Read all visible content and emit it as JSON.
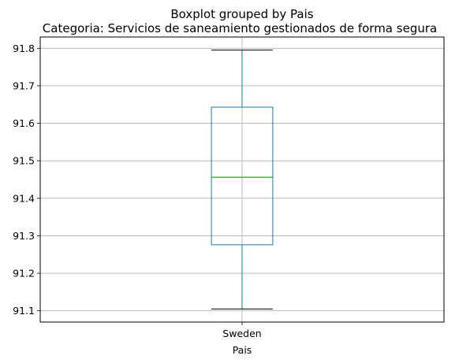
{
  "chart_data": {
    "type": "boxplot",
    "suptitle": "Boxplot grouped by Pais",
    "title": "Categoria: Servicios de saneamiento gestionados de forma segura",
    "xlabel": "Pais",
    "ylabel": "",
    "categories": [
      "Sweden"
    ],
    "boxes": [
      {
        "category": "Sweden",
        "whisker_low": 91.105,
        "q1": 91.276,
        "median": 91.456,
        "q3": 91.643,
        "whisker_high": 91.795
      }
    ],
    "ylim": [
      91.07,
      91.83
    ],
    "yticks": [
      91.1,
      91.2,
      91.3,
      91.4,
      91.5,
      91.6,
      91.7,
      91.8
    ],
    "ytick_labels": [
      "91.1",
      "91.2",
      "91.3",
      "91.4",
      "91.5",
      "91.6",
      "91.7",
      "91.8"
    ],
    "grid": true,
    "colors": {
      "box": "#1f77b4",
      "median": "#2ca02c",
      "whisker": "#1f77b4",
      "cap": "#000000",
      "grid": "#b0b0b0"
    }
  }
}
